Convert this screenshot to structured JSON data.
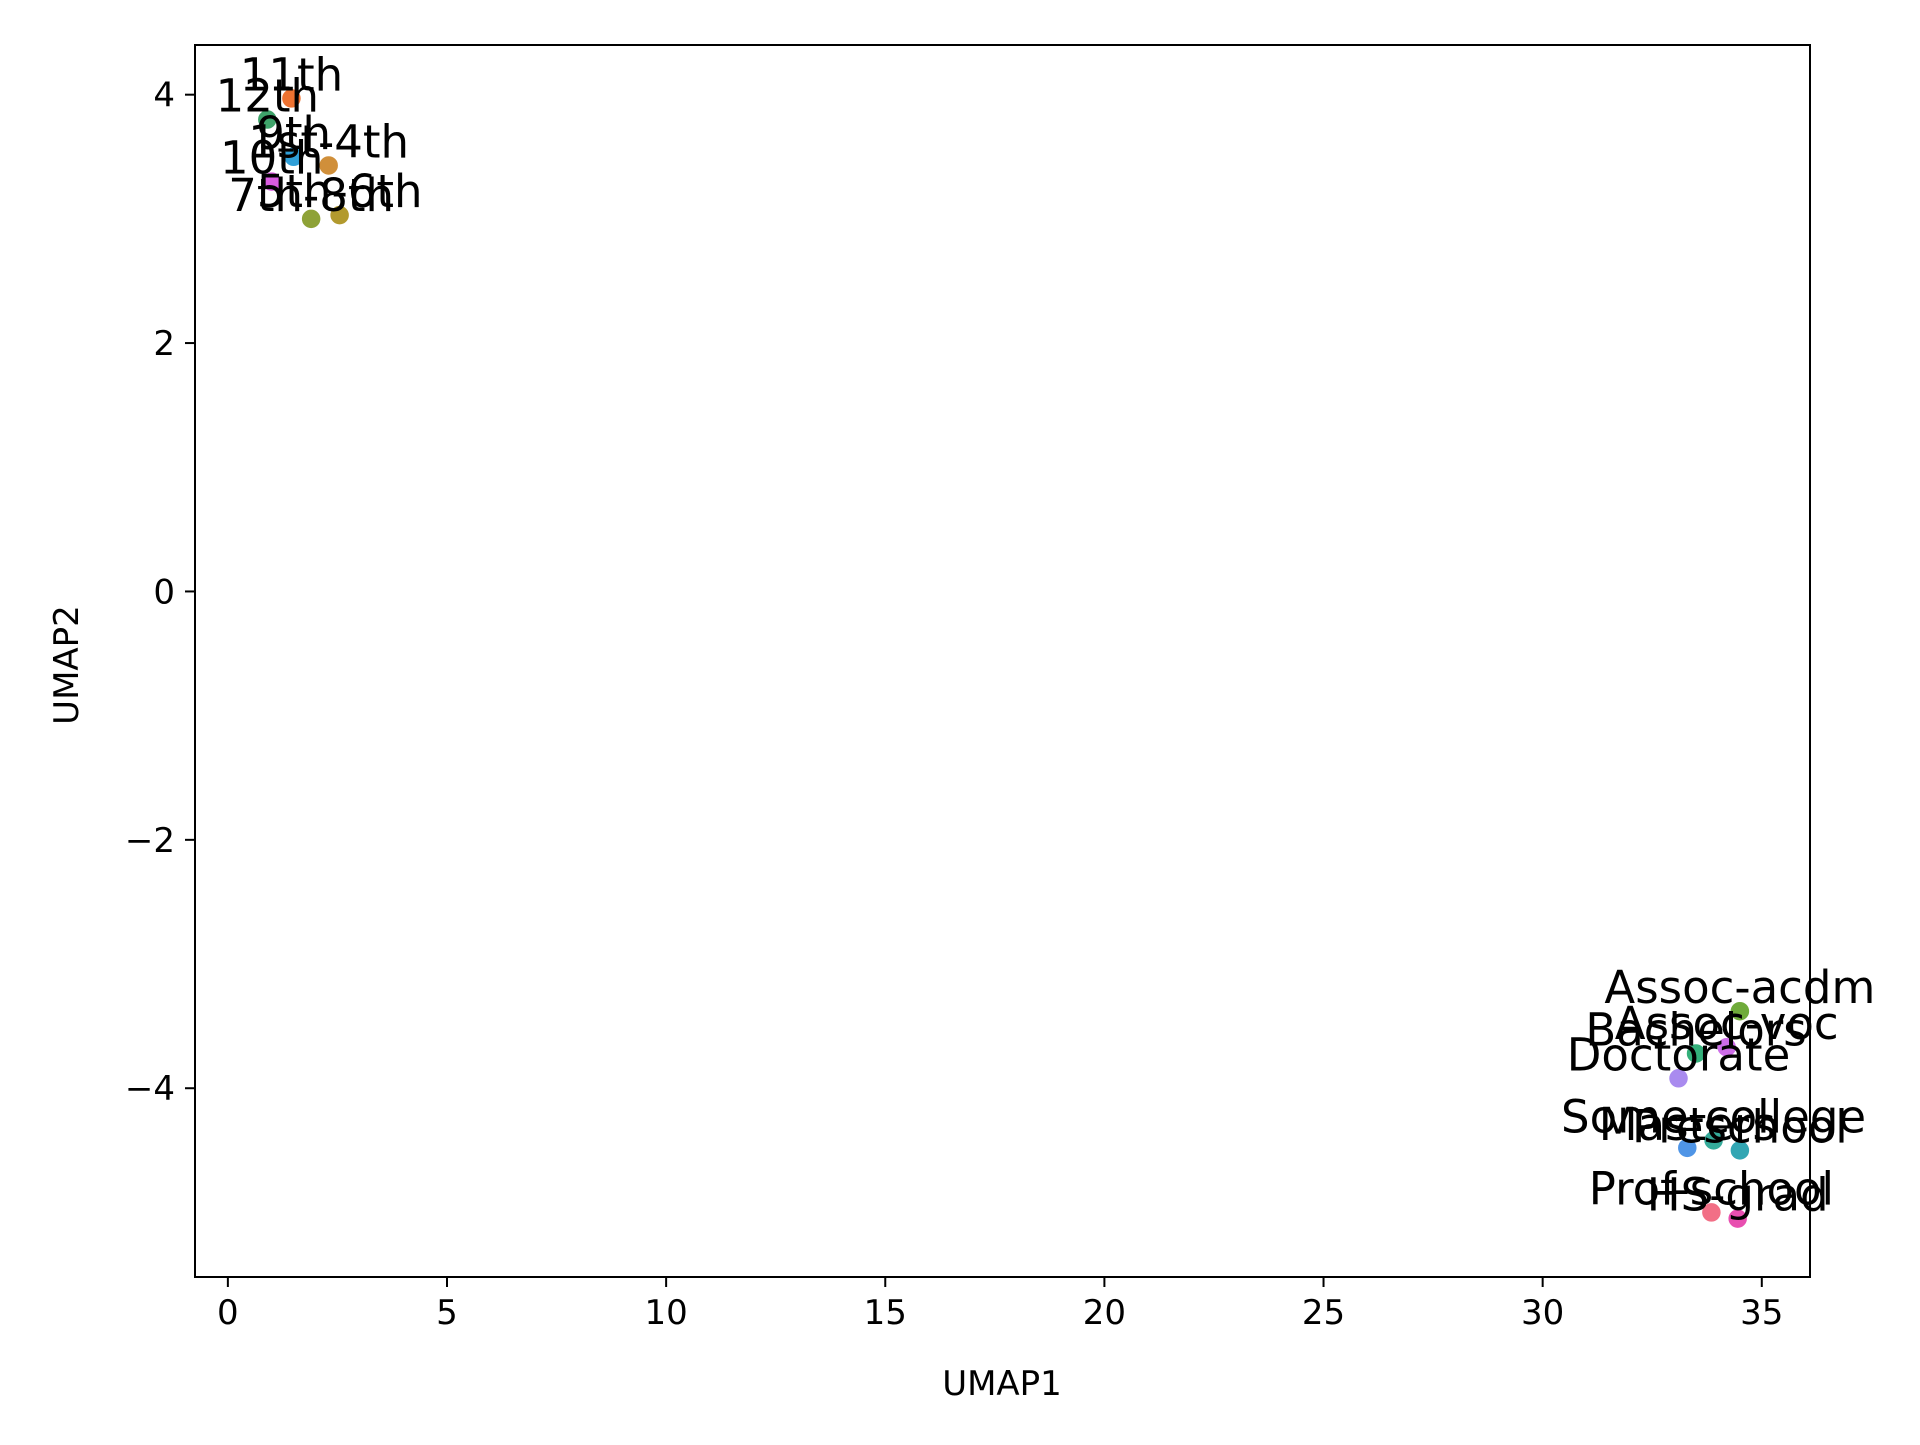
{
  "chart_data": {
    "type": "scatter",
    "title": "",
    "xlabel": "UMAP1",
    "ylabel": "UMAP2",
    "xlim": [
      -0.75,
      36.1
    ],
    "ylim": [
      -5.52,
      4.4
    ],
    "xticks": [
      0,
      5,
      10,
      15,
      20,
      25,
      30,
      35
    ],
    "yticks": [
      4,
      2,
      0,
      -2,
      -4
    ],
    "xtick_labels": [
      "0",
      "5",
      "10",
      "15",
      "20",
      "25",
      "30",
      "35"
    ],
    "ytick_labels": [
      "4",
      "2",
      "0",
      "−2",
      "−4"
    ],
    "grid": false,
    "legend": "none",
    "points": [
      {
        "label": "11th",
        "x": 1.45,
        "y": 3.97,
        "color": "#ee7231"
      },
      {
        "label": "12th",
        "x": 0.9,
        "y": 3.8,
        "color": "#3fa36a"
      },
      {
        "label": "9th",
        "x": 1.5,
        "y": 3.5,
        "color": "#2f9fd8"
      },
      {
        "label": "1st-4th",
        "x": 2.3,
        "y": 3.43,
        "color": "#d08f3a"
      },
      {
        "label": "10th",
        "x": 1.0,
        "y": 3.3,
        "color": "#d95ce0"
      },
      {
        "label": "5th-6th",
        "x": 2.55,
        "y": 3.03,
        "color": "#b29a2e"
      },
      {
        "label": "7th-8th",
        "x": 1.9,
        "y": 3.0,
        "color": "#8ea237"
      },
      {
        "label": "Assoc-acdm",
        "x": 34.5,
        "y": -3.38,
        "color": "#6fab3a"
      },
      {
        "label": "Assoc-voc",
        "x": 34.2,
        "y": -3.67,
        "color": "#cd6de8"
      },
      {
        "label": "Bachelors",
        "x": 33.5,
        "y": -3.72,
        "color": "#33b07a"
      },
      {
        "label": "Doctorate",
        "x": 33.1,
        "y": -3.92,
        "color": "#a98bef"
      },
      {
        "label": "Some-college",
        "x": 33.9,
        "y": -4.42,
        "color": "#35ab9a"
      },
      {
        "label": "Masters",
        "x": 33.3,
        "y": -4.48,
        "color": "#4f95e6"
      },
      {
        "label": "Preschool",
        "x": 34.5,
        "y": -4.5,
        "color": "#32a6b3"
      },
      {
        "label": "Prof-school",
        "x": 33.85,
        "y": -5.0,
        "color": "#f26f86"
      },
      {
        "label": "HS-grad",
        "x": 34.45,
        "y": -5.05,
        "color": "#e84fb0"
      }
    ]
  }
}
